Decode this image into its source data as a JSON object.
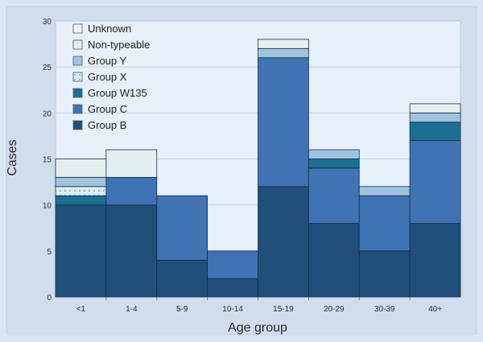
{
  "chart_data": {
    "type": "bar",
    "stacked": true,
    "xlabel": "Age group",
    "ylabel": "Cases",
    "ylim": [
      0,
      30
    ],
    "yticks": [
      0,
      5,
      10,
      15,
      20,
      25,
      30
    ],
    "categories": [
      "<1",
      "1-4",
      "5-9",
      "10-14",
      "15-19",
      "20-29",
      "30-39",
      "40+"
    ],
    "legend_position": "top-left",
    "series": [
      {
        "name": "Group B",
        "values": [
          10,
          10,
          4,
          2,
          12,
          8,
          5,
          8
        ],
        "color": "#1f4f7a",
        "pattern": "solid"
      },
      {
        "name": "Group C",
        "values": [
          0,
          3,
          7,
          3,
          14,
          6,
          6,
          9
        ],
        "color": "#3f73b2",
        "pattern": "solid"
      },
      {
        "name": "Group W135",
        "values": [
          1,
          0,
          0,
          0,
          0,
          1,
          0,
          2
        ],
        "color": "#1c6e93",
        "pattern": "solid"
      },
      {
        "name": "Group X",
        "values": [
          1,
          0,
          0,
          0,
          0,
          0,
          0,
          0
        ],
        "color": "#d8ecf3",
        "pattern": "dotted"
      },
      {
        "name": "Group Y",
        "values": [
          1,
          0,
          0,
          0,
          1,
          1,
          1,
          1
        ],
        "color": "#9fc4dd",
        "pattern": "solid"
      },
      {
        "name": "Non-typeable",
        "values": [
          2,
          3,
          0,
          0,
          1,
          0,
          0,
          1
        ],
        "color": "#e3efef",
        "pattern": "solid"
      },
      {
        "name": "Unknown",
        "values": [
          0,
          0,
          0,
          0,
          0,
          0,
          0,
          0
        ],
        "color": "#f1f4f5",
        "pattern": "solid"
      }
    ]
  }
}
